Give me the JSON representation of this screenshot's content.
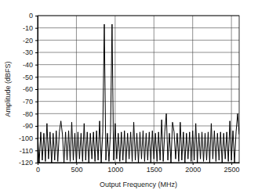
{
  "chart_data": {
    "type": "line",
    "x_label": "Output Frequency (MHz)",
    "y_label": "Amplitude (dBFS)",
    "color": "#000000",
    "grid": true,
    "xlim": [
      0,
      2600
    ],
    "xticks": [
      0,
      500,
      1000,
      1500,
      2000,
      2500
    ],
    "ylim": [
      -120,
      0
    ],
    "yticks": [
      0,
      -10,
      -20,
      -30,
      -40,
      -50,
      -60,
      -70,
      -80,
      -90,
      -100,
      -110,
      -120
    ],
    "x": [
      0,
      20,
      40,
      60,
      80,
      100,
      120,
      140,
      160,
      180,
      200,
      220,
      240,
      260,
      280,
      300,
      320,
      340,
      360,
      380,
      400,
      420,
      440,
      460,
      480,
      500,
      520,
      540,
      560,
      580,
      600,
      620,
      640,
      660,
      680,
      700,
      720,
      740,
      760,
      780,
      800,
      820,
      840,
      860,
      880,
      900,
      920,
      940,
      960,
      980,
      1000,
      1020,
      1040,
      1060,
      1080,
      1100,
      1120,
      1140,
      1160,
      1180,
      1200,
      1220,
      1240,
      1260,
      1280,
      1300,
      1320,
      1340,
      1360,
      1380,
      1400,
      1420,
      1440,
      1460,
      1480,
      1500,
      1520,
      1540,
      1560,
      1580,
      1600,
      1620,
      1640,
      1660,
      1680,
      1700,
      1720,
      1740,
      1760,
      1780,
      1800,
      1820,
      1840,
      1860,
      1880,
      1900,
      1920,
      1940,
      1960,
      1980,
      2000,
      2020,
      2040,
      2060,
      2080,
      2100,
      2120,
      2140,
      2160,
      2180,
      2200,
      2220,
      2240,
      2260,
      2280,
      2300,
      2320,
      2340,
      2360,
      2380,
      2400,
      2420,
      2440,
      2460,
      2480,
      2500,
      2520,
      2540,
      2560,
      2580,
      2600
    ],
    "values": [
      -97,
      -120,
      -95,
      -118,
      -96,
      -119,
      -88,
      -117,
      -95,
      -120,
      -96,
      -118,
      -94,
      -119,
      -95,
      -86,
      -97,
      -120,
      -95,
      -118,
      -94,
      -119,
      -87,
      -118,
      -96,
      -120,
      -95,
      -117,
      -96,
      -119,
      -88,
      -118,
      -95,
      -120,
      -96,
      -117,
      -95,
      -119,
      -94,
      -118,
      -86,
      -120,
      -95,
      -7,
      -118,
      -96,
      -119,
      -95,
      -7,
      -118,
      -88,
      -117,
      -96,
      -119,
      -95,
      -118,
      -94,
      -120,
      -96,
      -117,
      -95,
      -119,
      -87,
      -118,
      -96,
      -120,
      -95,
      -117,
      -94,
      -119,
      -96,
      -118,
      -95,
      -120,
      -94,
      -117,
      -96,
      -119,
      -95,
      -118,
      -85,
      -119,
      -95,
      -80,
      -118,
      -96,
      -120,
      -87,
      -95,
      -117,
      -96,
      -119,
      -87,
      -118,
      -95,
      -120,
      -96,
      -117,
      -95,
      -119,
      -94,
      -118,
      -88,
      -120,
      -96,
      -117,
      -95,
      -119,
      -96,
      -118,
      -95,
      -120,
      -88,
      -117,
      -94,
      -119,
      -96,
      -118,
      -95,
      -120,
      -96,
      -117,
      -95,
      -119,
      -86,
      -118,
      -94,
      -120,
      -95,
      -80,
      -97
    ]
  }
}
